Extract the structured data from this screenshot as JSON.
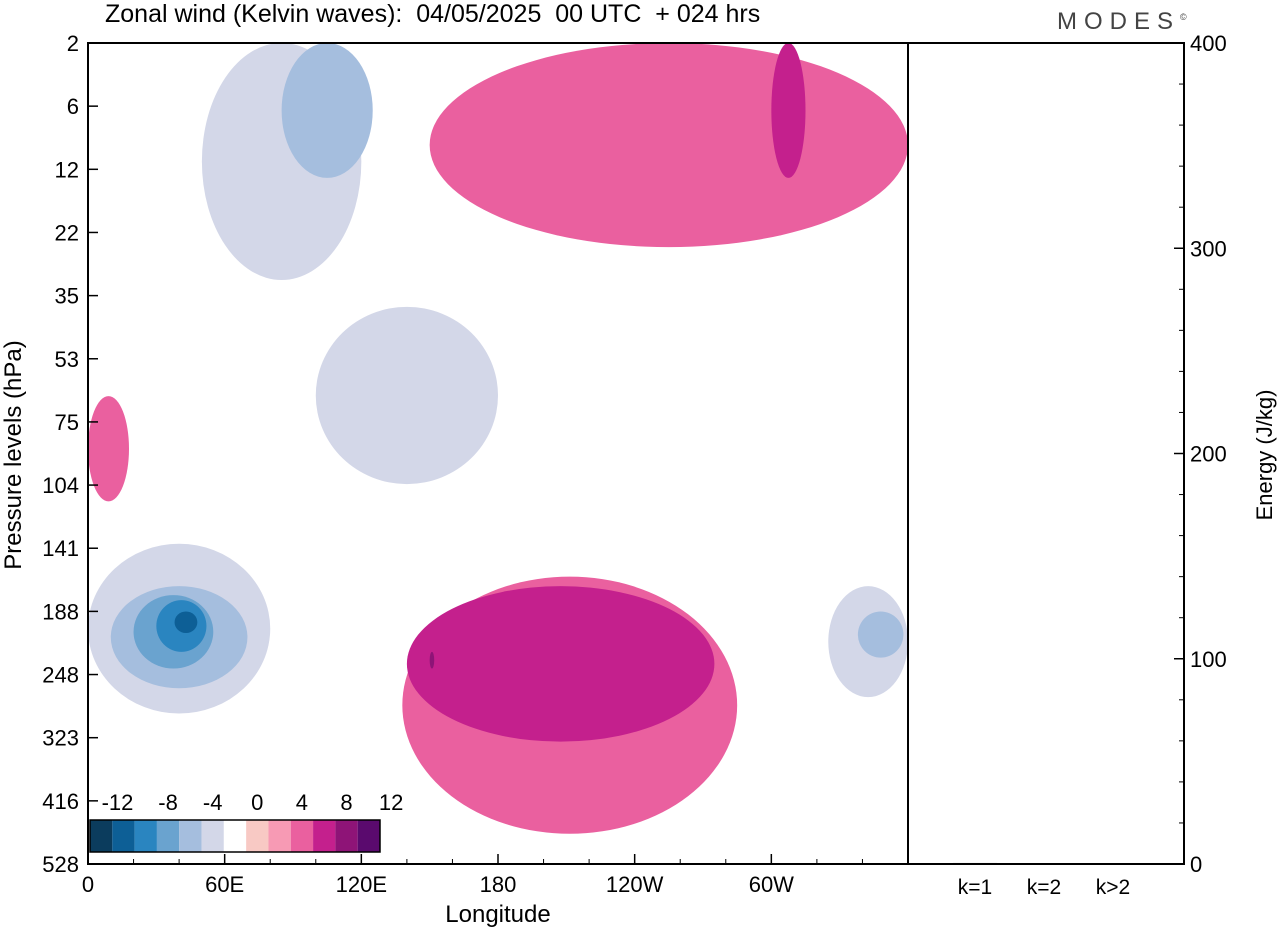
{
  "title": "Zonal wind (Kelvin waves):  04/05/2025  00 UTC  + 024 hrs",
  "logo": "MODES",
  "logo_mark": "©",
  "chart_data": [
    {
      "type": "heatmap",
      "title": "Zonal wind (Kelvin waves):  04/05/2025  00 UTC  + 024 hrs",
      "xlabel": "Longitude",
      "ylabel": "Pressure levels (hPa)",
      "x_ticks": [
        "0",
        "60E",
        "120E",
        "180",
        "120W",
        "60W"
      ],
      "x_tick_values": [
        0,
        60,
        120,
        180,
        240,
        300
      ],
      "xlim": [
        0,
        360
      ],
      "y_ticks": [
        "2",
        "6",
        "12",
        "22",
        "35",
        "53",
        "75",
        "104",
        "141",
        "188",
        "248",
        "323",
        "416",
        "528"
      ],
      "y_log": true,
      "y_reversed": true,
      "ylim": [
        2,
        528
      ],
      "colorbar": {
        "labels": [
          "-12",
          "-8",
          "-4",
          "0",
          "4",
          "8",
          "12"
        ],
        "levels": [
          -14,
          -12,
          -10,
          -8,
          -6,
          -4,
          -2,
          2,
          4,
          6,
          8,
          10,
          12,
          14
        ],
        "colors": [
          "#0b3c5d",
          "#0d5f96",
          "#2a85c0",
          "#6aa3cf",
          "#a5bede",
          "#d3d7e8",
          "#ffffff",
          "#f8c9c4",
          "#f79ab4",
          "#ea609f",
          "#c4208d",
          "#8e1477",
          "#5a0a6e"
        ]
      },
      "regions": [
        {
          "sign": "negative",
          "level": -4,
          "lon": [
            0,
            80
          ],
          "p": [
            60,
            190
          ]
        },
        {
          "sign": "negative",
          "level": -6,
          "lon": [
            10,
            70
          ],
          "p": [
            80,
            160
          ]
        },
        {
          "sign": "negative",
          "level": -8,
          "lon": [
            20,
            55
          ],
          "p": [
            85,
            140
          ]
        },
        {
          "sign": "negative",
          "level": -10,
          "lon": [
            30,
            52
          ],
          "p": [
            88,
            125
          ]
        },
        {
          "sign": "negative",
          "level": -12,
          "lon": [
            38,
            48
          ],
          "p": [
            95,
            110
          ]
        },
        {
          "sign": "positive",
          "level": 4,
          "lon": [
            138,
            285
          ],
          "p": [
            75,
            430
          ]
        },
        {
          "sign": "positive",
          "level": 6,
          "lon": [
            140,
            275
          ],
          "p": [
            80,
            230
          ]
        },
        {
          "sign": "positive",
          "level": 8,
          "lon": [
            150,
            152
          ],
          "p": [
            125,
            140
          ]
        },
        {
          "sign": "negative",
          "level": -4,
          "lon": [
            100,
            180
          ],
          "p": [
            12,
            40
          ]
        },
        {
          "sign": "negative",
          "level": -4,
          "lon": [
            50,
            120
          ],
          "p": [
            2,
            10
          ]
        },
        {
          "sign": "negative",
          "level": -6,
          "lon": [
            85,
            125
          ],
          "p": [
            2,
            5
          ]
        },
        {
          "sign": "positive",
          "level": 4,
          "lon": [
            0,
            18
          ],
          "p": [
            22,
            45
          ]
        },
        {
          "sign": "positive",
          "level": 4,
          "lon": [
            150,
            360
          ],
          "p": [
            2,
            8
          ]
        },
        {
          "sign": "positive",
          "level": 6,
          "lon": [
            300,
            315
          ],
          "p": [
            2,
            5
          ]
        },
        {
          "sign": "negative",
          "level": -4,
          "lon": [
            325,
            360
          ],
          "p": [
            80,
            170
          ]
        },
        {
          "sign": "negative",
          "level": -6,
          "lon": [
            338,
            358
          ],
          "p": [
            95,
            130
          ]
        }
      ]
    },
    {
      "type": "bar",
      "ylabel": "Energy (J/kg)",
      "categories": [
        "k=1",
        "k=2",
        "k>2"
      ],
      "values": [
        0.5,
        0.1,
        0.3
      ],
      "ylim": [
        0,
        400
      ],
      "y_ticks": [
        0,
        100,
        200,
        300,
        400
      ]
    }
  ]
}
